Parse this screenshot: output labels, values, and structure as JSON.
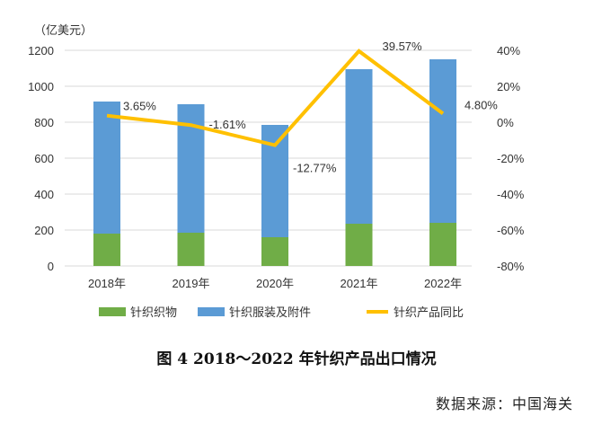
{
  "chart_data": {
    "type": "bar",
    "title": "图 4   2018～2022 年针织产品出口情况",
    "unit_label": "（亿美元）",
    "categories": [
      "2018年",
      "2019年",
      "2020年",
      "2021年",
      "2022年"
    ],
    "series": [
      {
        "name": "针织织物",
        "type": "stacked-bar",
        "color": "#70AD47",
        "values": [
          180,
          185,
          160,
          235,
          240
        ]
      },
      {
        "name": "针织服装及附件",
        "type": "stacked-bar",
        "color": "#5B9BD5",
        "values": [
          735,
          715,
          625,
          860,
          910
        ]
      },
      {
        "name": "针织产品同比",
        "type": "line",
        "axis": "right",
        "color": "#FFC000",
        "values": [
          3.65,
          -1.61,
          -12.77,
          39.57,
          4.8
        ],
        "labels": [
          "3.65%",
          "-1.61%",
          "-12.77%",
          "39.57%",
          "4.80%"
        ]
      }
    ],
    "ylim": [
      0,
      1200
    ],
    "yticks": [
      "0",
      "200",
      "400",
      "600",
      "800",
      "1000",
      "1200"
    ],
    "y2lim": [
      -80,
      40
    ],
    "y2ticks": [
      "-80%",
      "-60%",
      "-40%",
      "-20%",
      "0%",
      "20%",
      "40%"
    ],
    "legend": "bottom",
    "grid": true
  },
  "source": "数据来源：中国海关"
}
